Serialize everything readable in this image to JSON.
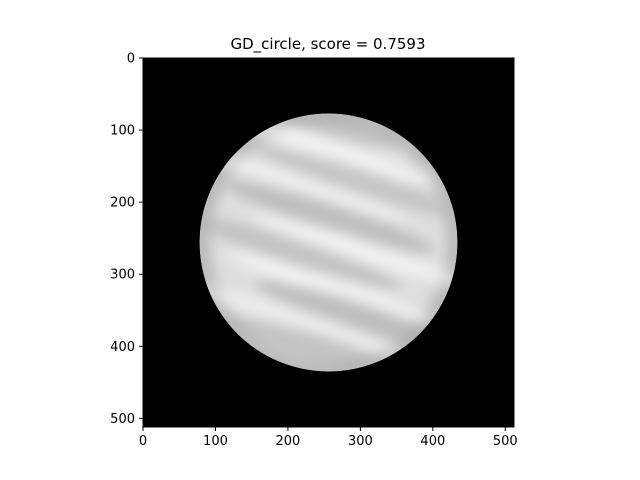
{
  "chart_data": {
    "type": "heatmap",
    "title": "GD_circle, score = 0.7593",
    "xlabel": "",
    "ylabel": "",
    "colormap": "gray",
    "background_color": "#000000",
    "image_size": [
      512,
      512
    ],
    "xlim": [
      0,
      512
    ],
    "ylim": [
      512,
      0
    ],
    "x_ticks": [
      0,
      100,
      200,
      300,
      400,
      500
    ],
    "y_ticks": [
      0,
      100,
      200,
      300,
      400,
      500
    ],
    "x_tick_labels": [
      "0",
      "100",
      "200",
      "300",
      "400",
      "500"
    ],
    "y_tick_labels": [
      "0",
      "100",
      "200",
      "300",
      "400",
      "500"
    ],
    "circle": {
      "center_x": 256,
      "center_y": 256,
      "radius": 178
    },
    "texture": "light grey with diagonal darker streaks",
    "grid": false,
    "score": 0.7593
  }
}
